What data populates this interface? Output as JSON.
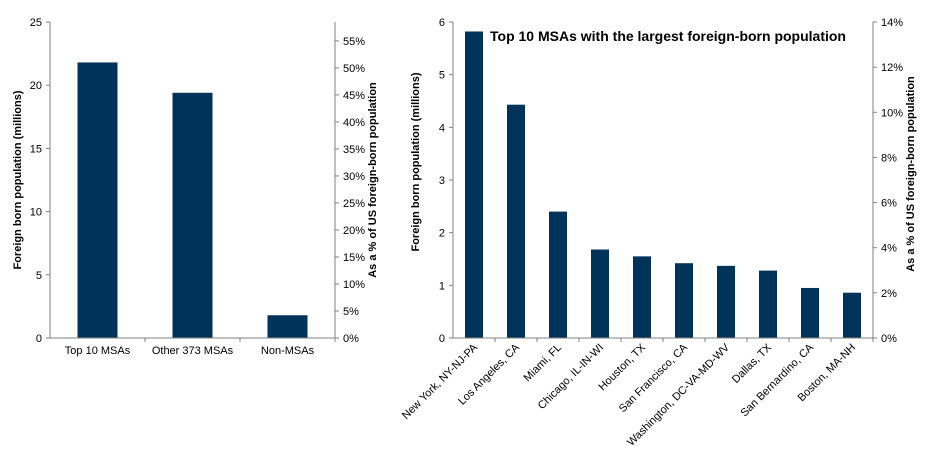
{
  "chart_data": [
    {
      "type": "bar",
      "categories": [
        "Top 10 MSAs",
        "Other 373 MSAs",
        "Non-MSAs"
      ],
      "values": [
        21.8,
        19.4,
        1.8
      ],
      "title": "",
      "ylabel": "Foreign born population (millions)",
      "y2label": "As a % of US foreign-born population",
      "ylim": [
        0,
        25
      ],
      "yticks": [
        "0",
        "5",
        "10",
        "15",
        "20",
        "25"
      ],
      "y2lim": [
        0,
        0.585
      ],
      "y2ticks": [
        "0%",
        "5%",
        "10%",
        "15%",
        "20%",
        "25%",
        "30%",
        "35%",
        "40%",
        "45%",
        "50%",
        "55%"
      ],
      "bar_color": "#003359",
      "grid": false
    },
    {
      "type": "bar",
      "categories": [
        "New York, NY-NJ-PA",
        "Los Angeles, CA",
        "Miami, FL",
        "Chicago, IL-IN-WI",
        "Houston, TX",
        "San Francisco, CA",
        "Washington, DC-VA-MD-WV",
        "Dallas, TX",
        "San Bernardino, CA",
        "Boston, MA-NH"
      ],
      "values": [
        5.82,
        4.43,
        2.4,
        1.68,
        1.55,
        1.42,
        1.37,
        1.28,
        0.95,
        0.86
      ],
      "title": "Top 10 MSAs with the largest foreign-born population",
      "ylabel": "Foreign born population (millions)",
      "y2label": "As a % of US foreign-born population",
      "ylim": [
        0,
        6
      ],
      "yticks": [
        "0",
        "1",
        "2",
        "3",
        "4",
        "5",
        "6"
      ],
      "y2lim": [
        0,
        0.14
      ],
      "y2ticks": [
        "0%",
        "2%",
        "4%",
        "6%",
        "8%",
        "10%",
        "12%",
        "14%"
      ],
      "bar_color": "#003359",
      "grid": false
    }
  ]
}
